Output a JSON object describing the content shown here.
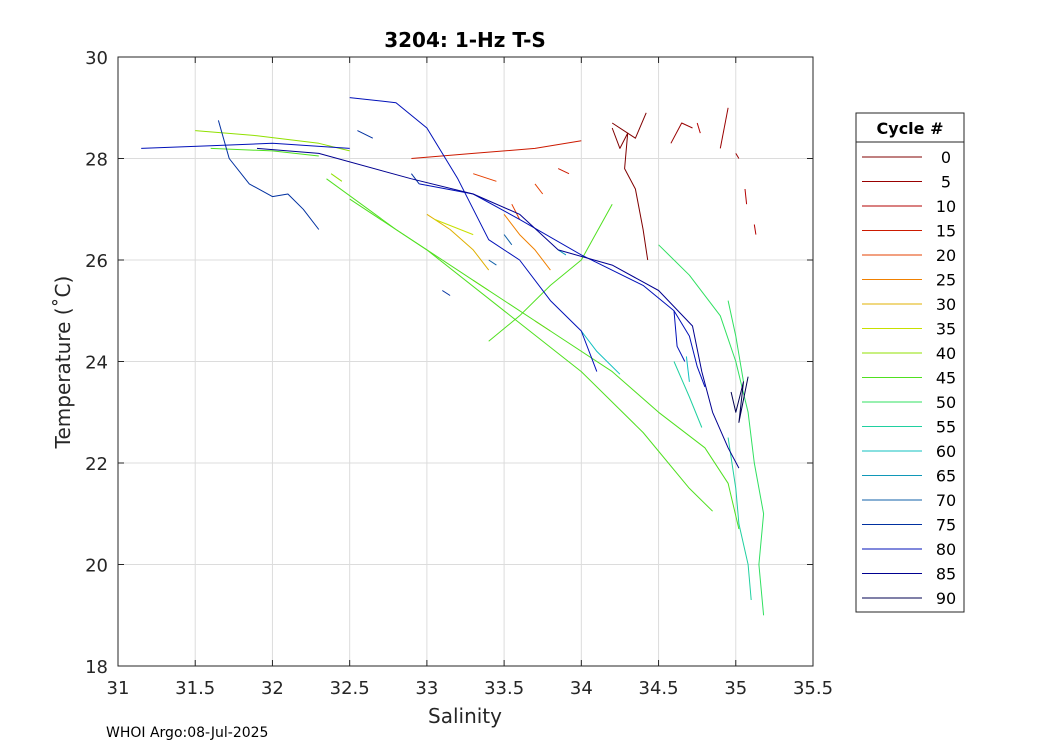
{
  "chart_data": {
    "type": "line",
    "title": "3204: 1-Hz T-S",
    "xlabel": "Salinity",
    "ylabel": "Temperature (˚C)",
    "xlim": [
      31,
      35.5
    ],
    "ylim": [
      18,
      30
    ],
    "xticks": [
      "31",
      "31.5",
      "32",
      "32.5",
      "33",
      "33.5",
      "34",
      "34.5",
      "35",
      "35.5"
    ],
    "yticks": [
      "18",
      "20",
      "22",
      "24",
      "26",
      "28",
      "30"
    ],
    "grid": true,
    "legend_title": "Cycle #",
    "legend_position": "right",
    "series": [
      {
        "name": "0",
        "color": "#800000",
        "segments": [
          [
            [
              34.2,
              28.6
            ],
            [
              34.25,
              28.2
            ],
            [
              34.3,
              28.5
            ],
            [
              34.28,
              27.8
            ],
            [
              34.35,
              27.4
            ],
            [
              34.4,
              26.6
            ],
            [
              34.43,
              26.0
            ]
          ],
          [
            [
              34.2,
              28.7
            ],
            [
              34.35,
              28.4
            ],
            [
              34.42,
              28.9
            ]
          ]
        ]
      },
      {
        "name": "5",
        "color": "#990000",
        "segments": [
          [
            [
              34.58,
              28.3
            ],
            [
              34.65,
              28.7
            ],
            [
              34.72,
              28.6
            ]
          ],
          [
            [
              34.9,
              28.2
            ],
            [
              34.95,
              29.0
            ]
          ],
          [
            [
              35.0,
              28.1
            ],
            [
              35.02,
              28.0
            ]
          ]
        ]
      },
      {
        "name": "10",
        "color": "#b30000",
        "segments": [
          [
            [
              35.06,
              27.4
            ],
            [
              35.07,
              27.1
            ]
          ],
          [
            [
              35.12,
              26.7
            ],
            [
              35.13,
              26.5
            ]
          ],
          [
            [
              34.75,
              28.7
            ],
            [
              34.77,
              28.5
            ]
          ]
        ]
      },
      {
        "name": "15",
        "color": "#cc1a00",
        "segments": [
          [
            [
              32.9,
              28.0
            ],
            [
              33.3,
              28.1
            ],
            [
              33.7,
              28.2
            ],
            [
              34.0,
              28.35
            ]
          ],
          [
            [
              33.85,
              27.8
            ],
            [
              33.92,
              27.7
            ]
          ]
        ]
      },
      {
        "name": "20",
        "color": "#e64000",
        "segments": [
          [
            [
              33.3,
              27.7
            ],
            [
              33.45,
              27.55
            ]
          ],
          [
            [
              33.7,
              27.5
            ],
            [
              33.75,
              27.3
            ]
          ],
          [
            [
              33.55,
              27.1
            ],
            [
              33.6,
              26.8
            ]
          ]
        ]
      },
      {
        "name": "25",
        "color": "#f08000",
        "segments": [
          [
            [
              33.5,
              26.9
            ],
            [
              33.6,
              26.5
            ],
            [
              33.7,
              26.2
            ],
            [
              33.8,
              25.8
            ]
          ]
        ]
      },
      {
        "name": "30",
        "color": "#e0b000",
        "segments": [
          [
            [
              33.0,
              26.9
            ],
            [
              33.15,
              26.6
            ],
            [
              33.3,
              26.2
            ],
            [
              33.4,
              25.8
            ]
          ],
          [
            [
              33.7,
              24.8
            ],
            [
              33.8,
              24.6
            ]
          ]
        ]
      },
      {
        "name": "35",
        "color": "#c8e000",
        "segments": [
          [
            [
              33.05,
              26.8
            ],
            [
              33.3,
              26.5
            ]
          ],
          [
            [
              33.3,
              25.6
            ],
            [
              33.4,
              25.4
            ]
          ]
        ]
      },
      {
        "name": "40",
        "color": "#90e000",
        "segments": [
          [
            [
              31.5,
              28.55
            ],
            [
              31.9,
              28.45
            ],
            [
              32.3,
              28.3
            ],
            [
              32.5,
              28.15
            ]
          ],
          [
            [
              32.38,
              27.7
            ],
            [
              32.45,
              27.55
            ]
          ]
        ]
      },
      {
        "name": "45",
        "color": "#50e020",
        "segments": [
          [
            [
              31.6,
              28.2
            ],
            [
              32.0,
              28.15
            ],
            [
              32.3,
              28.05
            ]
          ],
          [
            [
              32.35,
              27.6
            ],
            [
              32.8,
              26.6
            ],
            [
              33.3,
              25.6
            ],
            [
              33.8,
              24.6
            ],
            [
              34.2,
              23.8
            ],
            [
              34.5,
              23.0
            ],
            [
              34.8,
              22.3
            ],
            [
              34.95,
              21.6
            ],
            [
              35.02,
              20.7
            ]
          ],
          [
            [
              32.5,
              27.2
            ],
            [
              33.0,
              26.2
            ],
            [
              33.5,
              25.0
            ],
            [
              34.0,
              23.8
            ],
            [
              34.4,
              22.6
            ],
            [
              34.7,
              21.5
            ],
            [
              34.85,
              21.05
            ]
          ],
          [
            [
              34.2,
              27.1
            ],
            [
              34.0,
              26.0
            ],
            [
              33.8,
              25.5
            ],
            [
              33.6,
              24.9
            ],
            [
              33.4,
              24.4
            ]
          ]
        ]
      },
      {
        "name": "50",
        "color": "#30e060",
        "segments": [
          [
            [
              34.5,
              26.3
            ],
            [
              34.7,
              25.7
            ],
            [
              34.9,
              24.9
            ],
            [
              35.0,
              24.0
            ],
            [
              35.08,
              23.0
            ],
            [
              35.12,
              22.0
            ],
            [
              35.18,
              21.0
            ],
            [
              35.15,
              20.0
            ],
            [
              35.18,
              19.0
            ]
          ],
          [
            [
              34.95,
              25.2
            ],
            [
              35.0,
              24.5
            ],
            [
              35.05,
              23.6
            ]
          ]
        ]
      },
      {
        "name": "55",
        "color": "#20d0a0",
        "segments": [
          [
            [
              34.95,
              22.5
            ],
            [
              35.0,
              21.5
            ],
            [
              35.02,
              20.8
            ],
            [
              35.08,
              20.0
            ],
            [
              35.1,
              19.3
            ]
          ],
          [
            [
              34.6,
              24.0
            ],
            [
              34.7,
              23.3
            ],
            [
              34.78,
              22.7
            ]
          ]
        ]
      },
      {
        "name": "60",
        "color": "#10c0c0",
        "segments": [
          [
            [
              34.0,
              24.6
            ],
            [
              34.1,
              24.2
            ],
            [
              34.25,
              23.75
            ]
          ],
          [
            [
              34.68,
              24.1
            ],
            [
              34.7,
              23.6
            ]
          ]
        ]
      },
      {
        "name": "65",
        "color": "#1098b8",
        "segments": [
          [
            [
              33.85,
              26.2
            ],
            [
              33.9,
              26.1
            ]
          ]
        ]
      },
      {
        "name": "70",
        "color": "#1060a8",
        "segments": [
          [
            [
              33.4,
              26.0
            ],
            [
              33.45,
              25.9
            ]
          ],
          [
            [
              33.5,
              26.5
            ],
            [
              33.55,
              26.3
            ]
          ]
        ]
      },
      {
        "name": "75",
        "color": "#0030a0",
        "segments": [
          [
            [
              31.65,
              28.75
            ],
            [
              31.72,
              28.0
            ],
            [
              31.85,
              27.5
            ],
            [
              32.0,
              27.25
            ],
            [
              32.1,
              27.3
            ],
            [
              32.2,
              27.0
            ],
            [
              32.3,
              26.6
            ]
          ],
          [
            [
              32.55,
              28.55
            ],
            [
              32.65,
              28.4
            ]
          ],
          [
            [
              32.9,
              27.7
            ],
            [
              32.95,
              27.5
            ]
          ],
          [
            [
              33.1,
              25.4
            ],
            [
              33.15,
              25.3
            ]
          ]
        ]
      },
      {
        "name": "80",
        "color": "#0010b8",
        "segments": [
          [
            [
              31.15,
              28.2
            ],
            [
              31.6,
              28.25
            ],
            [
              32.0,
              28.3
            ],
            [
              32.5,
              28.2
            ]
          ],
          [
            [
              32.5,
              29.2
            ],
            [
              32.8,
              29.1
            ],
            [
              33.0,
              28.6
            ],
            [
              33.2,
              27.6
            ],
            [
              33.4,
              26.4
            ],
            [
              33.6,
              26.0
            ],
            [
              33.8,
              25.2
            ],
            [
              34.0,
              24.6
            ],
            [
              34.1,
              23.8
            ]
          ],
          [
            [
              32.95,
              27.5
            ],
            [
              33.3,
              27.3
            ],
            [
              33.6,
              26.8
            ],
            [
              34.0,
              26.1
            ],
            [
              34.4,
              25.5
            ],
            [
              34.6,
              25.0
            ],
            [
              34.7,
              24.5
            ],
            [
              34.75,
              23.9
            ],
            [
              34.8,
              23.5
            ]
          ],
          [
            [
              34.6,
              25.0
            ],
            [
              34.62,
              24.3
            ],
            [
              34.67,
              24.0
            ]
          ]
        ]
      },
      {
        "name": "85",
        "color": "#000090",
        "segments": [
          [
            [
              31.9,
              28.2
            ],
            [
              32.3,
              28.1
            ],
            [
              32.9,
              27.6
            ],
            [
              33.3,
              27.3
            ],
            [
              33.6,
              26.9
            ],
            [
              33.85,
              26.2
            ],
            [
              34.2,
              25.9
            ],
            [
              34.5,
              25.4
            ],
            [
              34.72,
              24.7
            ],
            [
              34.78,
              23.8
            ],
            [
              34.85,
              23.0
            ],
            [
              34.95,
              22.3
            ],
            [
              35.02,
              21.9
            ]
          ]
        ]
      },
      {
        "name": "90",
        "color": "#000050",
        "segments": [
          [
            [
              34.97,
              23.4
            ],
            [
              35.0,
              23.0
            ],
            [
              35.05,
              23.6
            ],
            [
              35.02,
              22.8
            ],
            [
              35.08,
              23.7
            ]
          ]
        ]
      }
    ]
  },
  "footer": {
    "text": "WHOI Argo:08-Jul-2025"
  }
}
